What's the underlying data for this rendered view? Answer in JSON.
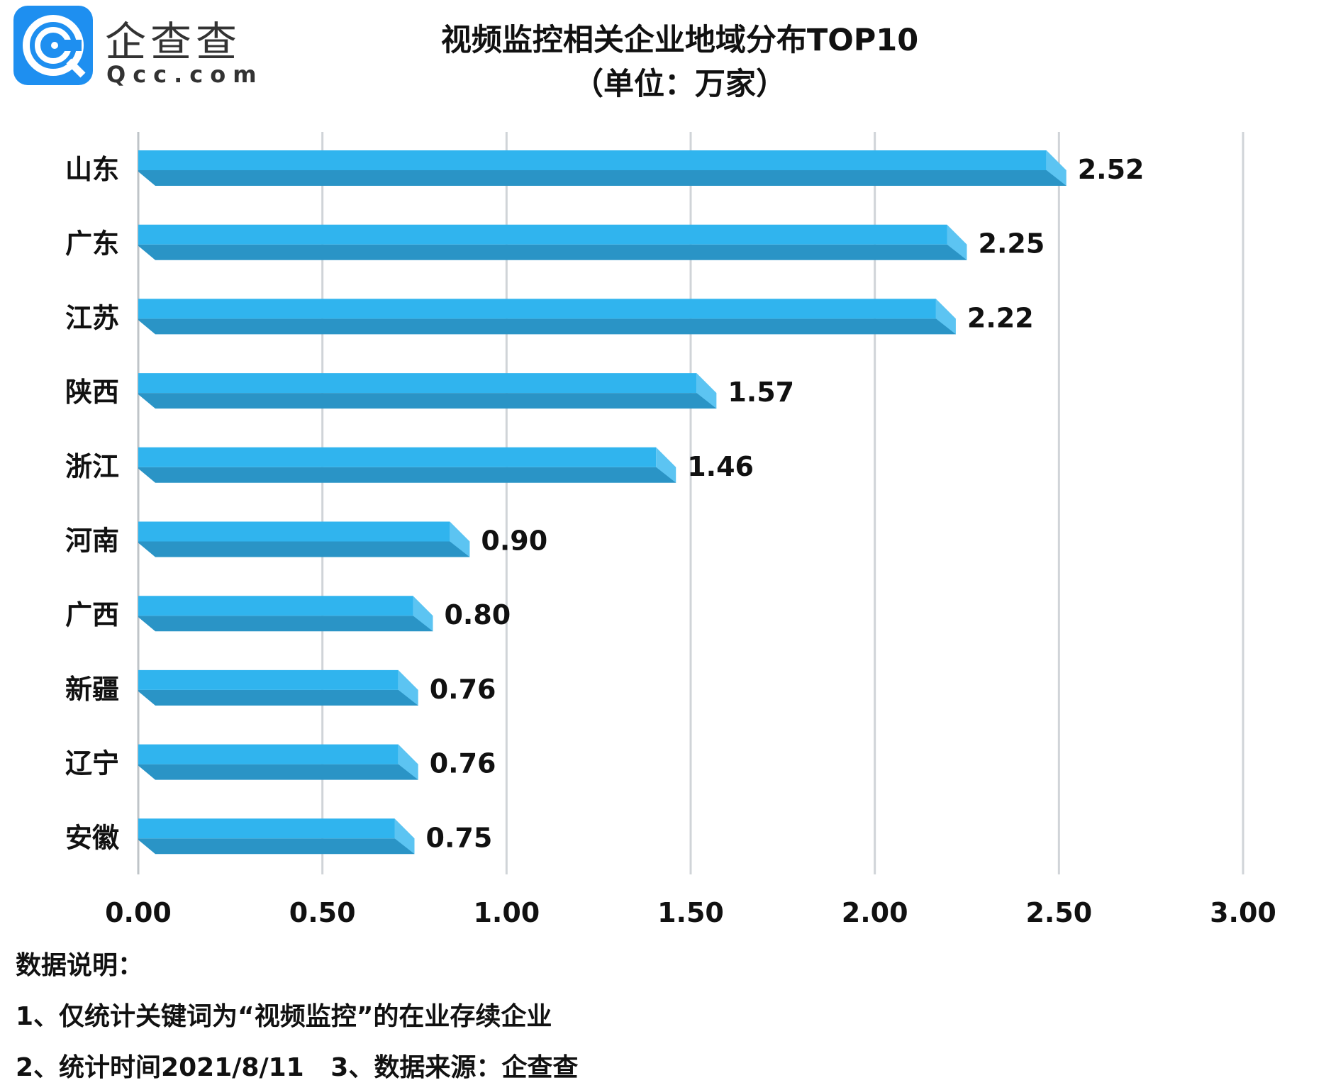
{
  "logo": {
    "brand_cn": "企查查",
    "brand_en": "Qcc.com",
    "color": "#1e8ff0"
  },
  "chart_data": {
    "type": "bar",
    "orientation": "horizontal",
    "title": "视频监控相关企业地域分布TOP10",
    "subtitle": "（单位：万家）",
    "categories": [
      "山东",
      "广东",
      "江苏",
      "陕西",
      "浙江",
      "河南",
      "广西",
      "新疆",
      "辽宁",
      "安徽"
    ],
    "values": [
      2.52,
      2.25,
      2.22,
      1.57,
      1.46,
      0.9,
      0.8,
      0.76,
      0.76,
      0.75
    ],
    "value_labels": [
      "2.52",
      "2.25",
      "2.22",
      "1.57",
      "1.46",
      "0.90",
      "0.80",
      "0.76",
      "0.76",
      "0.75"
    ],
    "xlim": [
      0,
      3
    ],
    "xticks": [
      "0.00",
      "0.50",
      "1.00",
      "1.50",
      "2.00",
      "2.50",
      "3.00"
    ],
    "grid": true,
    "colors": {
      "bar_top": "#30b4ee",
      "bar_bottom": "#2a94c6",
      "bar_end": "#5cc4f2",
      "grid": "#d0d4d8"
    }
  },
  "notes": {
    "heading": "数据说明：",
    "line1": "1、仅统计关键词为“视频监控”的在业存续企业",
    "line2": "2、统计时间2021/8/11   3、数据来源：企查查"
  }
}
